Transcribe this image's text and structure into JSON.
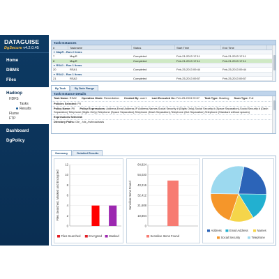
{
  "brand": {
    "name": "DATAGUISE",
    "product": "DgSecure",
    "version": "v4.2.0.45"
  },
  "sidebar": {
    "items": [
      {
        "label": "Home"
      },
      {
        "label": "DBMS"
      },
      {
        "label": "Files"
      }
    ],
    "hadoop": {
      "label": "Hadoop",
      "sub": [
        {
          "label": "HDFS",
          "children": [
            {
              "label": "Tasks"
            },
            {
              "label": "Results"
            }
          ]
        },
        {
          "label": "Flume"
        },
        {
          "label": "FTP"
        }
      ]
    },
    "bottom_items": [
      {
        "label": "Dashboard"
      },
      {
        "label": "DgPolicy"
      }
    ]
  },
  "task_instances": {
    "title": "Task Instances",
    "columns": [
      "#",
      "Taskname",
      "Status",
      "Start Time",
      "End Time"
    ],
    "groups": [
      {
        "label": "MapR - Run 2 Items",
        "rows": [
          {
            "num": "7",
            "name": "MapR",
            "status": "Completed",
            "start": "Feb-21-2013 17:11",
            "end": "Feb-21-2013 17:11",
            "selected": false
          },
          {
            "num": "8",
            "name": "MapR",
            "status": "Completed",
            "start": "Feb-21-2013 17:11",
            "end": "Feb-21-2013 17:11",
            "selected": true
          }
        ]
      },
      {
        "label": "RSA1 - Run 1 Items",
        "rows": [
          {
            "num": "20",
            "name": "RSA1",
            "status": "Completed",
            "start": "Feb-25-2013 09:44",
            "end": "Feb-25-2013 09:44",
            "selected": false
          }
        ]
      },
      {
        "label": "RSA2 - Run 1 Items",
        "rows": [
          {
            "num": "21",
            "name": "RSA2",
            "status": "Completed",
            "start": "Feb-25-2013 09:57",
            "end": "Feb-25-2013 09:57",
            "selected": false
          }
        ]
      }
    ]
  },
  "tabs": [
    {
      "label": "By Task",
      "active": true
    },
    {
      "label": "By Date Range",
      "active": false
    }
  ],
  "details": {
    "title": "Task Instance Details",
    "task_name_label": "Task Name:",
    "task_name": "RSA2",
    "op_mode_label": "Operation Mode:",
    "op_mode": "Remediation",
    "created_by_label": "Created By:",
    "created_by": "user1",
    "last_exec_label": "Last Executed On:",
    "last_exec": "Feb-25-2013 09:57",
    "task_type_label": "Task Type:",
    "task_type": "Masking",
    "scan_type_label": "Scan Type:",
    "scan_type": "Full",
    "policies_label": "Policies Selected:",
    "policies": "PII",
    "policy_name_label": "Policy Name:",
    "policy_name": "PII",
    "policy_expr_label": "Policy Expressions:",
    "policy_expr": "Address,Email Address,IP Address,Names,Social Security # (Digits Only),Social Security # (Space Separation),Social Security # (Dash Separation),Telephone (Digits Only),Telephone (Space Separation),Telephone (Dash Separation),Telephone (Dot Separation),Telephone (Standard without spaces)",
    "expr_selected_label": "Expressions Selected:",
    "dir_paths_label": "Directory Paths:",
    "dir_paths": "Ole_ /ols_/ezbroadrasts"
  },
  "summary_tabs": [
    {
      "label": "Summary",
      "active": true
    },
    {
      "label": "Detailed Results",
      "active": false
    }
  ],
  "chart_data": [
    {
      "type": "bar",
      "categories": [
        "Files Searched",
        "Encrypted",
        "Masked"
      ],
      "values": [
        0,
        4,
        4
      ],
      "ylabel": "Files Searched, Masked and Encrypted",
      "ylim": [
        0,
        12
      ],
      "yticks": [
        "0",
        "2",
        "4",
        "6",
        "8",
        "10",
        "12"
      ],
      "colors": [
        "#e21f26",
        "#ff0000",
        "#9c27b0"
      ],
      "legend": [
        "Files Searched",
        "Encrypted",
        "Masked"
      ],
      "legend_colors": [
        "#e21f26",
        "#e21f26",
        "#9c27b0"
      ],
      "grid": true
    },
    {
      "type": "bar",
      "categories": [
        "Sensitive Items Found"
      ],
      "values": [
        48000
      ],
      "ylabel": "Sensitive Items Found",
      "ylim": [
        0,
        64824
      ],
      "yticks": [
        "0",
        "10,804",
        "21,608",
        "32,412",
        "43,216",
        "54,020",
        "64,824"
      ],
      "colors": [
        "#f77b72"
      ],
      "legend": [
        "Sensitive Items Found"
      ],
      "grid": true
    },
    {
      "type": "pie",
      "slices": [
        {
          "name": "Address",
          "value": 22,
          "color": "#2c64b8"
        },
        {
          "name": "Email Address",
          "value": 16,
          "color": "#22b0d0"
        },
        {
          "name": "Names",
          "value": 14,
          "color": "#f5d54a"
        },
        {
          "name": "Social Security",
          "value": 20,
          "color": "#f5962a"
        },
        {
          "name": "Telephone",
          "value": 28,
          "color": "#9cd9ef"
        }
      ],
      "legend_placement": "bottom"
    }
  ]
}
